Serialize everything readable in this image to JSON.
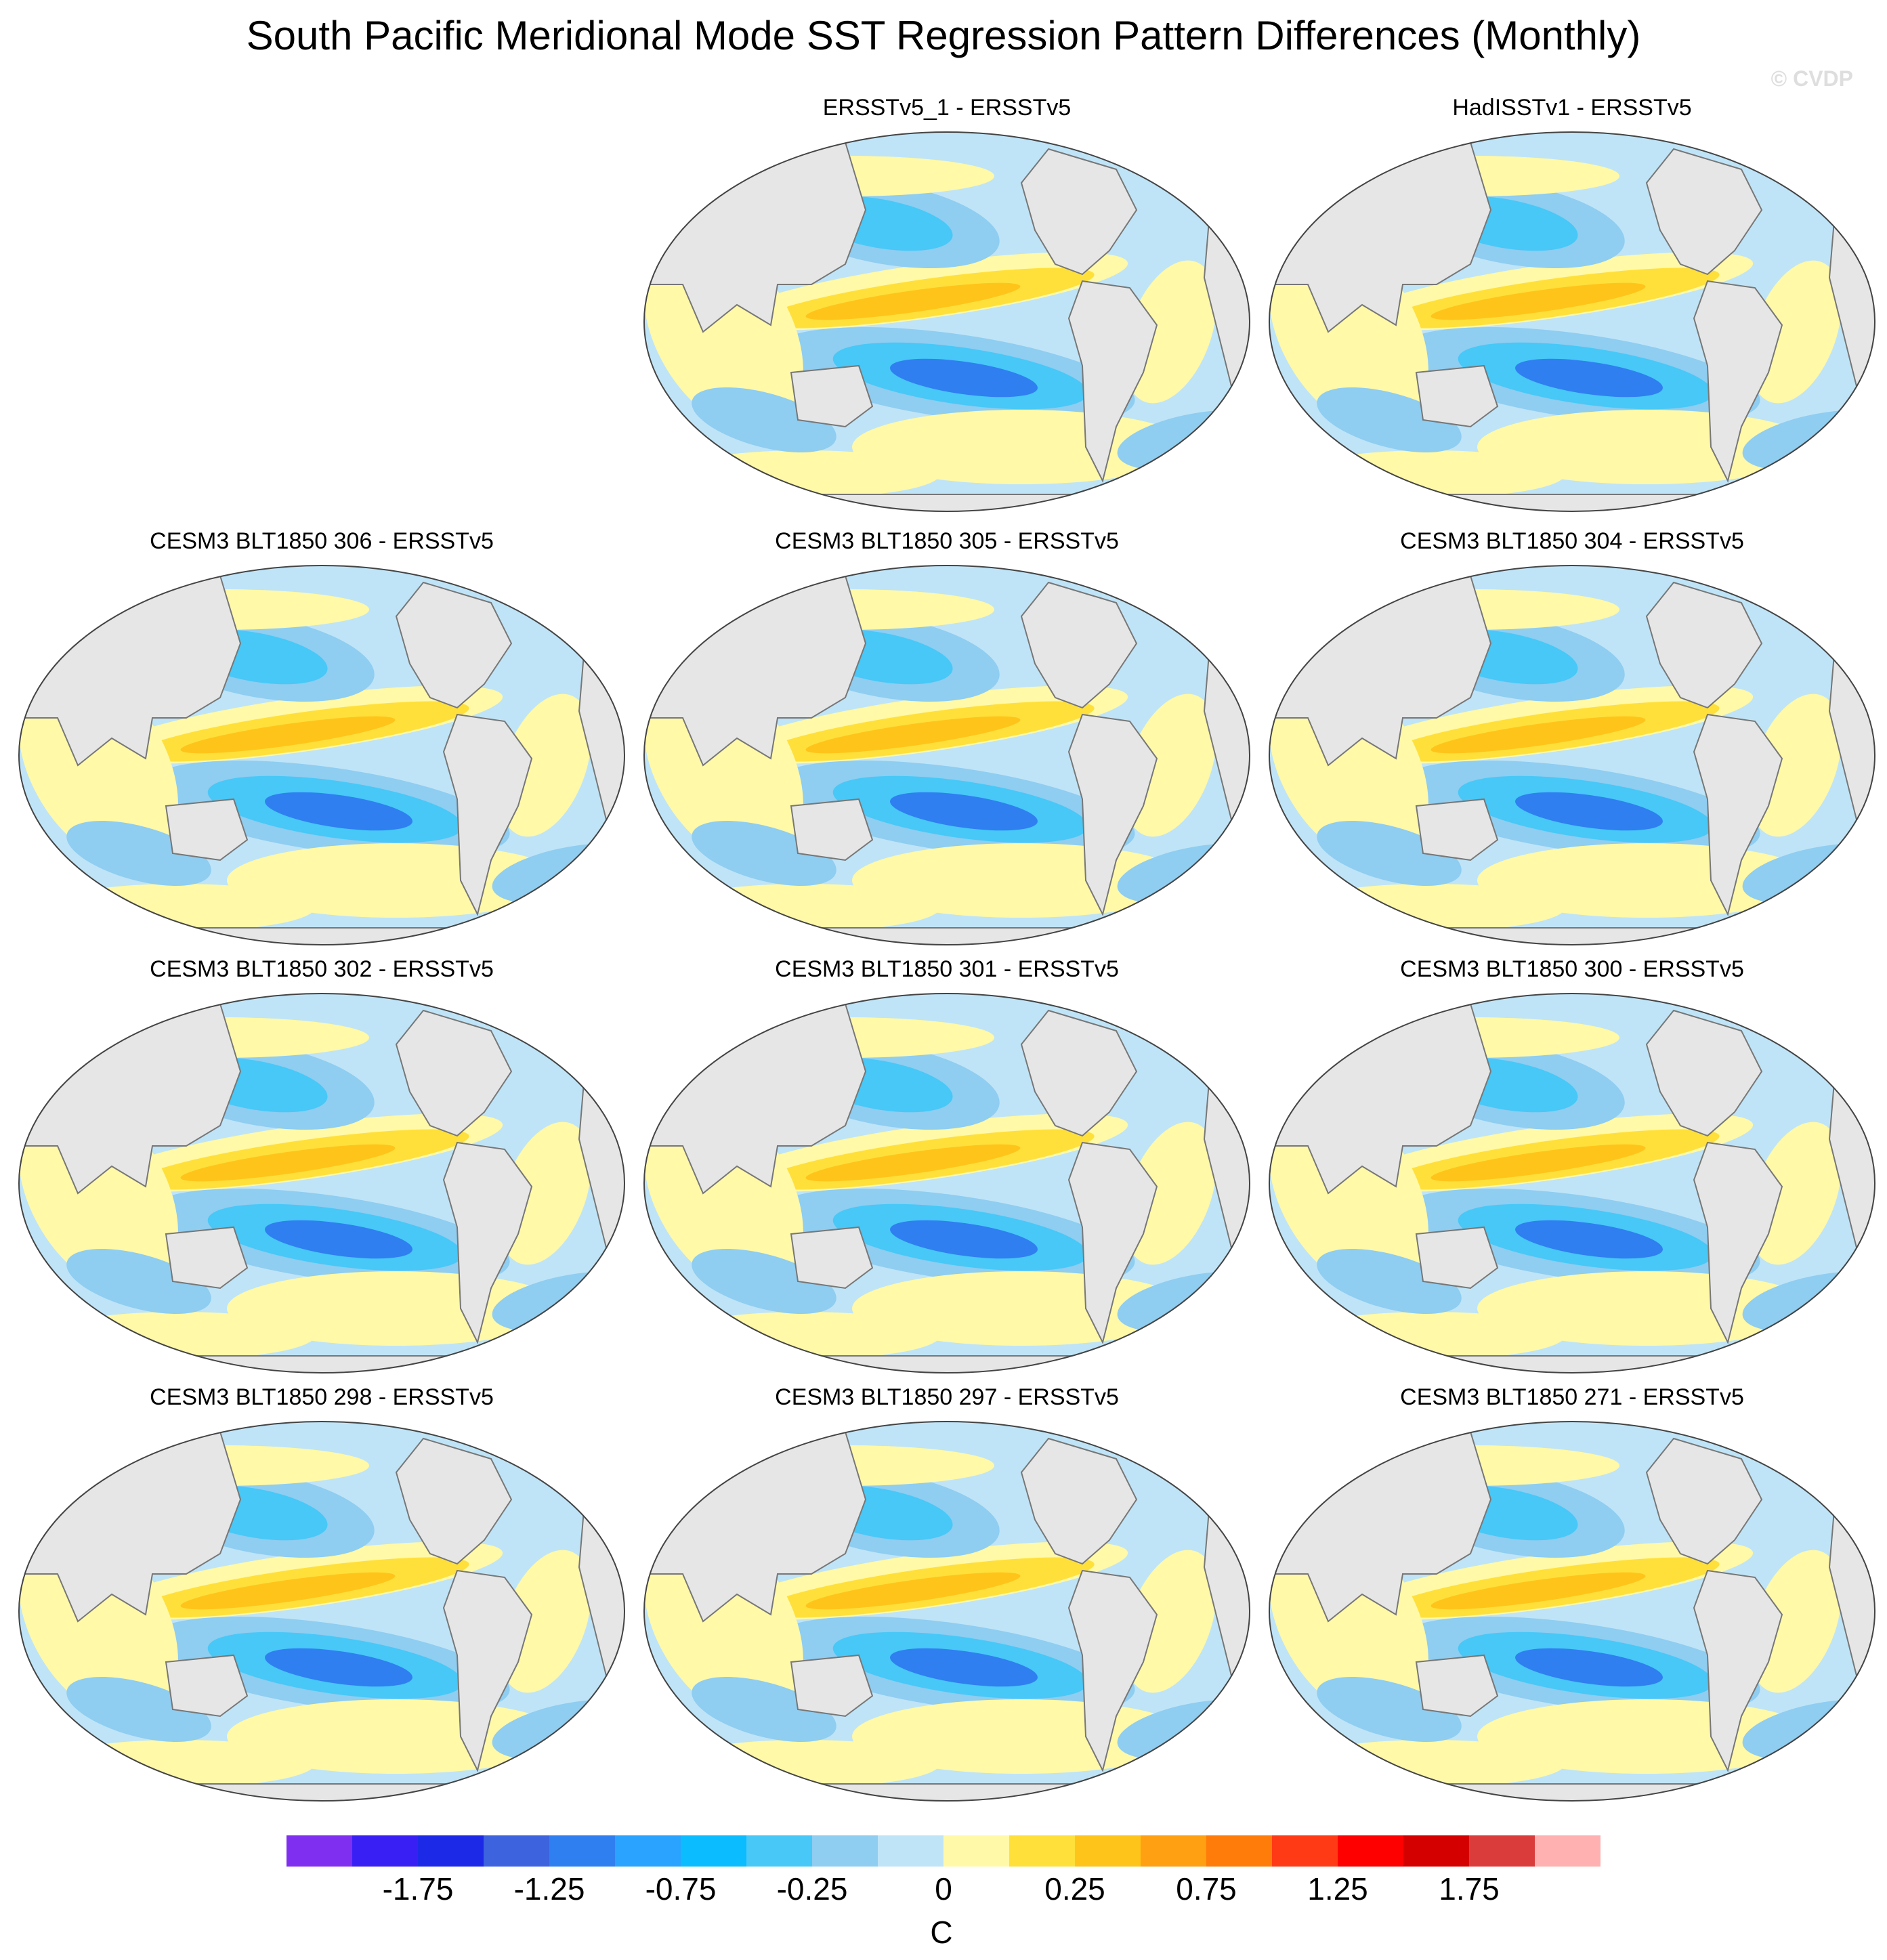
{
  "title": "South Pacific Meridional Mode SST Regression Pattern Differences (Monthly)",
  "credit": "© CVDP",
  "panels": [
    {
      "title": "ERSSTv5_1 - ERSSTv5"
    },
    {
      "title": "HadISSTv1 - ERSSTv5"
    },
    {
      "title": "CESM3 BLT1850 306 - ERSSTv5"
    },
    {
      "title": "CESM3 BLT1850 305 - ERSSTv5"
    },
    {
      "title": "CESM3 BLT1850 304 - ERSSTv5"
    },
    {
      "title": "CESM3 BLT1850 302 - ERSSTv5"
    },
    {
      "title": "CESM3 BLT1850 301 - ERSSTv5"
    },
    {
      "title": "CESM3 BLT1850 300 - ERSSTv5"
    },
    {
      "title": "CESM3 BLT1850 298 - ERSSTv5"
    },
    {
      "title": "CESM3 BLT1850 297 - ERSSTv5"
    },
    {
      "title": "CESM3 BLT1850 271 - ERSSTv5"
    }
  ],
  "colorbar": {
    "colors": [
      "#7e2ff0",
      "#3a1ff5",
      "#1c2ae8",
      "#3d63de",
      "#2f7ff0",
      "#2aa2ff",
      "#0bbcff",
      "#47c8f7",
      "#8fcdf1",
      "#bfe4f7",
      "#fff9a8",
      "#ffe03b",
      "#ffc41a",
      "#ff9f12",
      "#ff7c0a",
      "#ff3a14",
      "#ff0000",
      "#d40000",
      "#da3c3c",
      "#ffb0b0"
    ],
    "ticks": [
      "-1.75",
      "-1.25",
      "-0.75",
      "-0.25",
      "0",
      "0.25",
      "0.75",
      "1.25",
      "1.75"
    ],
    "units": "C"
  },
  "map_colors": {
    "ocean": "#bfe4f7",
    "land": "#e6e6e6",
    "coast": "#777777",
    "neg_weak": "#8fcdf1",
    "neg_mid": "#47c8f7",
    "neg_strong": "#2f7ff0",
    "pos_weak": "#fff9a8",
    "pos_mid": "#ffe03b",
    "pos_strong": "#ffc41a"
  }
}
